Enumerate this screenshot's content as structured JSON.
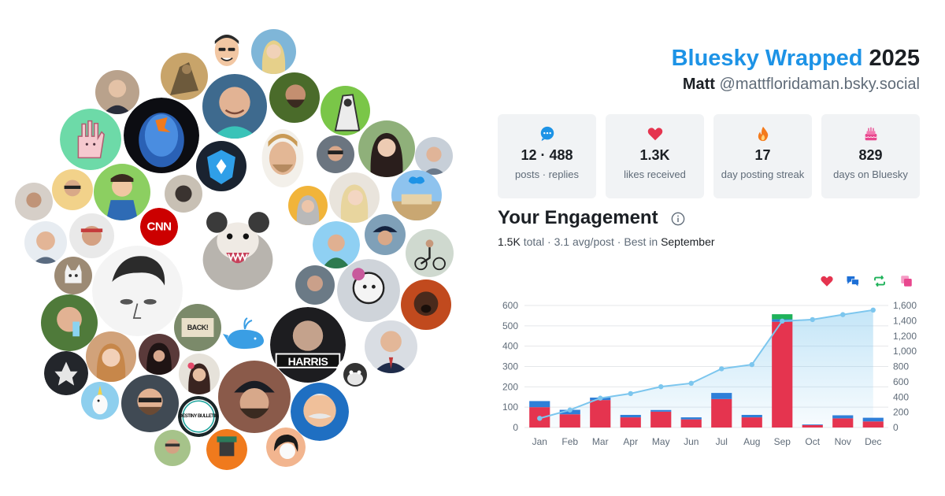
{
  "header": {
    "brand": "Bluesky Wrapped",
    "year": "2025",
    "name": "Matt",
    "handle": "@mattfloridaman.bsky.social"
  },
  "stats": [
    {
      "icon": "speech-bubble-icon",
      "value": "12 · 488",
      "label": "posts · replies",
      "color": "#1d93e6"
    },
    {
      "icon": "heart-icon",
      "value": "1.3K",
      "label": "likes received",
      "color": "#e5344f"
    },
    {
      "icon": "flame-icon",
      "value": "17",
      "label": "day posting streak",
      "color": "#f47a1c"
    },
    {
      "icon": "cake-icon",
      "value": "829",
      "label": "days on Bluesky",
      "color": "#e8478e"
    }
  ],
  "engagement": {
    "title": "Your Engagement",
    "total": "1.5K",
    "total_word": "total",
    "avg": "3.1 avg/post",
    "best_prefix": "Best in",
    "best_month": "September"
  },
  "avatar_labels": {
    "news": "CNN",
    "harris": "HARRIS",
    "sign": "BACK!",
    "podcast": "DESTINY BULLETIN"
  },
  "colors": {
    "likes": "#e5344f",
    "replies": "#2f7fd8",
    "reposts": "#1fb25a",
    "quotes": "#e8478e",
    "cumulative": "#7cc6ee"
  },
  "legend": [
    {
      "icon": "heart-icon",
      "color": "#e5344f"
    },
    {
      "icon": "chat-bubbles-icon",
      "color": "#1d6fd6"
    },
    {
      "icon": "repost-icon",
      "color": "#1fb25a"
    },
    {
      "icon": "quote-icon",
      "color": "#e8478e"
    }
  ],
  "chart_data": {
    "type": "bar",
    "categories": [
      "Jan",
      "Feb",
      "Mar",
      "Apr",
      "May",
      "Jun",
      "Jul",
      "Aug",
      "Sep",
      "Oct",
      "Nov",
      "Dec"
    ],
    "stacked": true,
    "series": [
      {
        "values": [
          100,
          65,
          135,
          50,
          78,
          40,
          140,
          50,
          520,
          12,
          45,
          30
        ]
      },
      {
        "values": [
          30,
          22,
          12,
          12,
          8,
          10,
          30,
          12,
          12,
          3,
          15,
          18
        ]
      },
      {
        "values": [
          0,
          0,
          0,
          0,
          0,
          0,
          0,
          0,
          25,
          0,
          0,
          0
        ]
      },
      {
        "values": [
          0,
          0,
          0,
          0,
          0,
          0,
          0,
          0,
          0,
          0,
          0,
          0
        ]
      }
    ],
    "cumulative": {
      "values": [
        120,
        230,
        385,
        445,
        535,
        580,
        770,
        825,
        1395,
        1415,
        1480,
        1540
      ]
    },
    "yticks_left": [
      "0",
      "100",
      "200",
      "300",
      "400",
      "500",
      "600"
    ],
    "yticks_right": [
      "0",
      "200",
      "400",
      "600",
      "800",
      "1,000",
      "1,200",
      "1,400",
      "1,600"
    ],
    "ylim": [
      0,
      600
    ],
    "ylim_right": [
      0,
      1600
    ],
    "grid": true
  }
}
